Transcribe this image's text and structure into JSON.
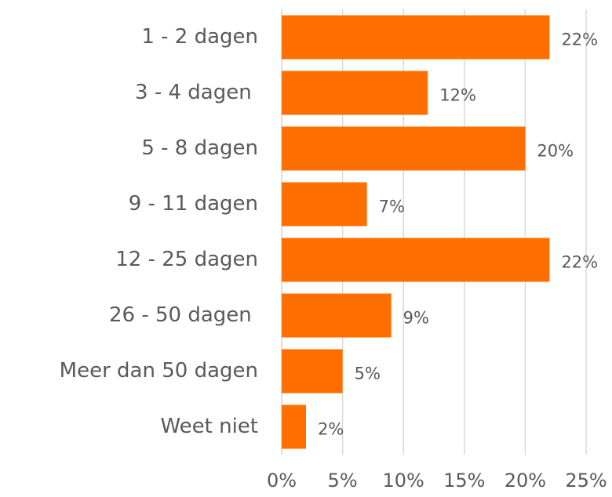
{
  "chart_data": {
    "type": "bar",
    "orientation": "horizontal",
    "categories": [
      "1 - 2 dagen",
      "3 - 4 dagen ",
      "5 - 8 dagen",
      "9 - 11 dagen",
      "12 - 25 dagen",
      "26 - 50 dagen ",
      "Meer dan 50 dagen",
      "Weet niet"
    ],
    "values": [
      22,
      12,
      20,
      7,
      22,
      9,
      5,
      2
    ],
    "value_labels": [
      "22%",
      "12%",
      "20%",
      "7%",
      "22%",
      "9%",
      "5%",
      "2%"
    ],
    "color": "#ff6f00",
    "xlim": [
      0,
      25
    ],
    "xticks": [
      {
        "value": 0,
        "label": "0%"
      },
      {
        "value": 5,
        "label": "5%"
      },
      {
        "value": 10,
        "label": "10%"
      },
      {
        "value": 15,
        "label": "15%"
      },
      {
        "value": 20,
        "label": "20%"
      },
      {
        "value": 25,
        "label": "25%"
      }
    ],
    "grid": true
  }
}
